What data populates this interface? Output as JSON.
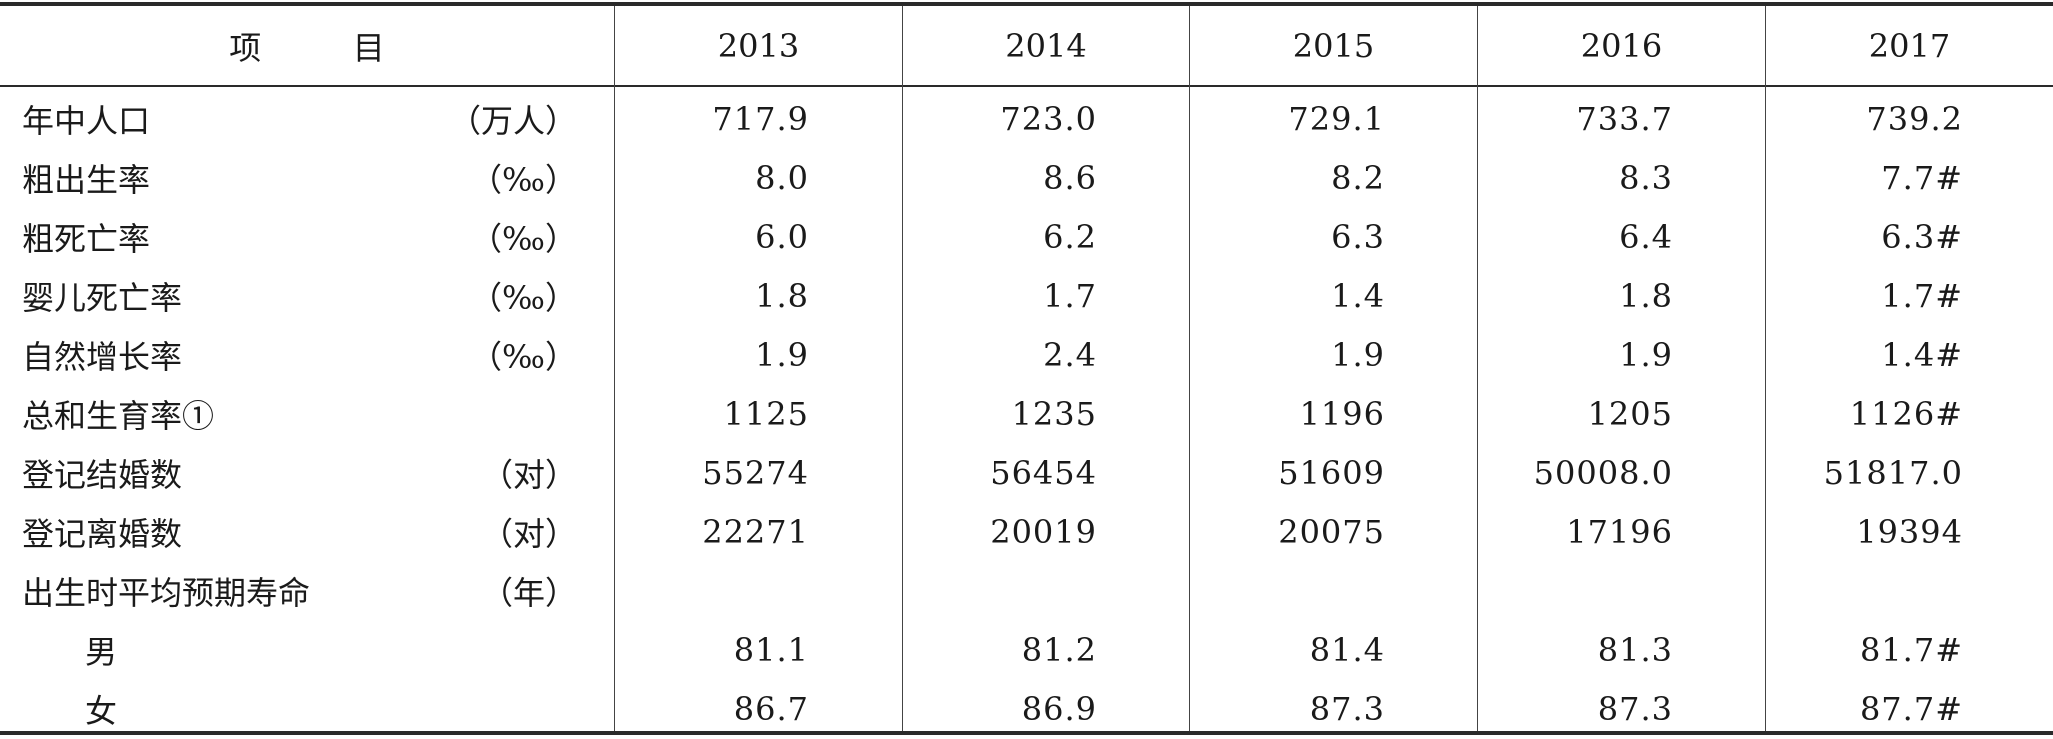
{
  "header": {
    "item_label": "项         目",
    "years": [
      "2013",
      "2014",
      "2015",
      "2016",
      "2017"
    ]
  },
  "rows": [
    {
      "label": "年中人口",
      "unit": "（万人）",
      "values": [
        "717.9",
        "723.0",
        "729.1",
        "733.7",
        "739.2"
      ]
    },
    {
      "label": "粗出生率",
      "unit": "（‰）",
      "values": [
        "8.0",
        "8.6",
        "8.2",
        "8.3",
        "7.7#"
      ]
    },
    {
      "label": "粗死亡率",
      "unit": "（‰）",
      "values": [
        "6.0",
        "6.2",
        "6.3",
        "6.4",
        "6.3#"
      ]
    },
    {
      "label": "婴儿死亡率",
      "unit": "（‰）",
      "values": [
        "1.8",
        "1.7",
        "1.4",
        "1.8",
        "1.7#"
      ]
    },
    {
      "label": "自然增长率",
      "unit": "（‰）",
      "values": [
        "1.9",
        "2.4",
        "1.9",
        "1.9",
        "1.4#"
      ]
    },
    {
      "label": "总和生育率①",
      "unit": "",
      "values": [
        "1125",
        "1235",
        "1196",
        "1205",
        "1126#"
      ]
    },
    {
      "label": "登记结婚数",
      "unit": "（对）",
      "values": [
        "55274",
        "56454",
        "51609",
        "50008.0",
        "51817.0"
      ]
    },
    {
      "label": "登记离婚数",
      "unit": "（对）",
      "values": [
        "22271",
        "20019",
        "20075",
        "17196",
        "19394"
      ]
    },
    {
      "label": "出生时平均预期寿命",
      "unit": "（年）",
      "values": [
        "",
        "",
        "",
        "",
        ""
      ]
    },
    {
      "label": "男",
      "unit": "",
      "values": [
        "81.1",
        "81.2",
        "81.4",
        "81.3",
        "81.7#"
      ]
    },
    {
      "label": "女",
      "unit": "",
      "values": [
        "86.7",
        "86.9",
        "87.3",
        "87.3",
        "87.7#"
      ]
    }
  ]
}
